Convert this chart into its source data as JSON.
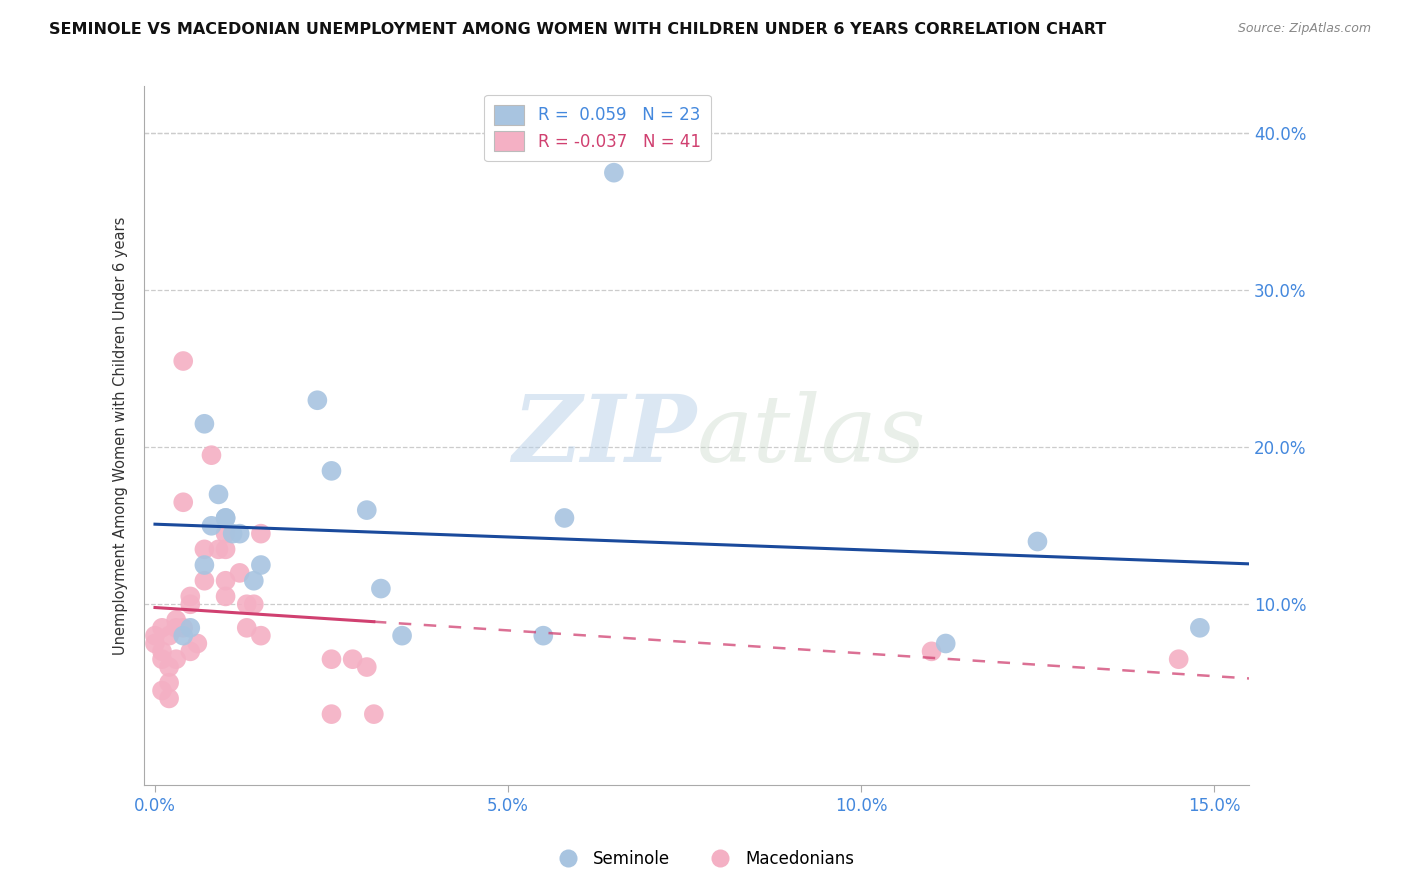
{
  "title": "SEMINOLE VS MACEDONIAN UNEMPLOYMENT AMONG WOMEN WITH CHILDREN UNDER 6 YEARS CORRELATION CHART",
  "source": "Source: ZipAtlas.com",
  "ylabel": "Unemployment Among Women with Children Under 6 years",
  "xlim": [
    -0.15,
    15.5
  ],
  "ylim": [
    -1.5,
    43.0
  ],
  "x_ticks": [
    0.0,
    5.0,
    10.0,
    15.0
  ],
  "x_tick_labels": [
    "0.0%",
    "5.0%",
    "10.0%",
    "15.0%"
  ],
  "y_ticks": [
    0.0,
    10.0,
    20.0,
    30.0,
    40.0
  ],
  "y_tick_labels": [
    "",
    "10.0%",
    "20.0%",
    "30.0%",
    "40.0%"
  ],
  "seminole_R": 0.059,
  "seminole_N": 23,
  "macedonian_R": -0.037,
  "macedonian_N": 41,
  "seminole_color": "#a8c4e0",
  "seminole_line_color": "#1a4a9c",
  "macedonian_color": "#f4b0c4",
  "macedonian_line_color": "#d04070",
  "legend_label_seminole": "Seminole",
  "legend_label_macedonian": "Macedonians",
  "watermark_zip": "ZIP",
  "watermark_atlas": "atlas",
  "tick_color": "#4488dd",
  "grid_color": "#cccccc",
  "seminole_x": [
    0.4,
    0.5,
    0.7,
    0.8,
    0.9,
    1.0,
    1.1,
    1.4,
    1.5,
    2.3,
    2.5,
    3.0,
    3.5,
    5.5,
    6.5,
    11.2,
    12.5,
    14.8,
    0.7,
    1.0,
    1.2,
    3.2,
    5.8
  ],
  "seminole_y": [
    8.0,
    8.5,
    21.5,
    15.0,
    17.0,
    15.5,
    14.5,
    11.5,
    12.5,
    23.0,
    18.5,
    16.0,
    8.0,
    8.0,
    37.5,
    7.5,
    14.0,
    8.5,
    12.5,
    15.5,
    14.5,
    11.0,
    15.5
  ],
  "macedonian_x": [
    0.0,
    0.0,
    0.1,
    0.1,
    0.1,
    0.1,
    0.2,
    0.2,
    0.2,
    0.2,
    0.3,
    0.3,
    0.3,
    0.4,
    0.4,
    0.4,
    0.5,
    0.5,
    0.5,
    0.6,
    0.7,
    0.7,
    0.8,
    0.9,
    1.0,
    1.0,
    1.0,
    1.0,
    1.2,
    1.3,
    1.3,
    1.4,
    1.5,
    1.5,
    2.5,
    2.5,
    2.8,
    3.0,
    3.1,
    11.0,
    14.5
  ],
  "macedonian_y": [
    8.0,
    7.5,
    8.5,
    7.0,
    6.5,
    4.5,
    8.0,
    6.0,
    5.0,
    4.0,
    9.0,
    8.5,
    6.5,
    8.5,
    25.5,
    16.5,
    7.0,
    10.5,
    10.0,
    7.5,
    13.5,
    11.5,
    19.5,
    13.5,
    14.5,
    13.5,
    11.5,
    10.5,
    12.0,
    10.0,
    8.5,
    10.0,
    14.5,
    8.0,
    6.5,
    3.0,
    6.5,
    6.0,
    3.0,
    7.0,
    6.5
  ]
}
